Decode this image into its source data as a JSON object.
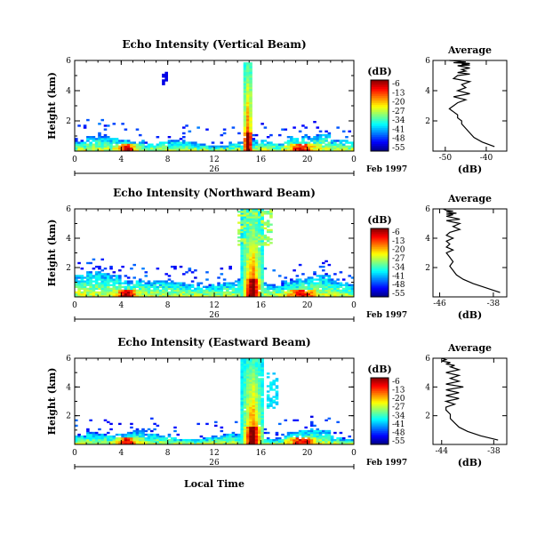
{
  "chart_data": [
    {
      "type": "heatmap",
      "title": "Echo Intensity (Vertical Beam)",
      "ylabel": "Height (km)",
      "xlabel": "",
      "x_ticks": [
        "0",
        "4",
        "8",
        "12",
        "16",
        "20",
        "0"
      ],
      "y_ticks": [
        "2",
        "4",
        "6"
      ],
      "xlim": [
        0,
        24
      ],
      "ylim": [
        0,
        6
      ],
      "colorbar": {
        "unit": "(dB)",
        "ticks": [
          "-6",
          "-13",
          "-20",
          "-27",
          "-34",
          "-41",
          "-48",
          "-55"
        ]
      },
      "profile": {
        "title": "Average",
        "xlabel": "(dB)",
        "x_ticks": [
          "-50",
          "-40"
        ],
        "xlim": [
          -53,
          -35
        ],
        "y_ticks": [
          "2",
          "4",
          "6"
        ],
        "x": [
          -38,
          -41,
          -43,
          -44,
          -45,
          -46,
          -46,
          -47,
          -47,
          -48,
          -49,
          -48,
          -47,
          -45,
          -48,
          -44,
          -47,
          -45,
          -46,
          -44,
          -48,
          -47,
          -44,
          -47,
          -45,
          -46,
          -44,
          -46,
          -47,
          -44,
          -46,
          -44,
          -48,
          -45,
          -46,
          -47,
          -48,
          -49
        ],
        "y": [
          0.3,
          0.6,
          0.9,
          1.2,
          1.5,
          1.8,
          2.0,
          2.2,
          2.4,
          2.6,
          2.8,
          3.0,
          3.2,
          3.4,
          3.6,
          3.8,
          4.0,
          4.2,
          4.4,
          4.6,
          4.8,
          5.0,
          5.1,
          5.2,
          5.3,
          5.4,
          5.5,
          5.6,
          5.65,
          5.7,
          5.75,
          5.8,
          5.85,
          5.9,
          5.92,
          5.95,
          5.98,
          6.0
        ]
      }
    },
    {
      "type": "heatmap",
      "title": "Echo Intensity (Northward Beam)",
      "ylabel": "Height (km)",
      "xlabel": "",
      "x_ticks": [
        "0",
        "4",
        "8",
        "12",
        "16",
        "20",
        "0"
      ],
      "y_ticks": [
        "2",
        "4",
        "6"
      ],
      "xlim": [
        0,
        24
      ],
      "ylim": [
        0,
        6
      ],
      "colorbar": {
        "unit": "(dB)",
        "ticks": [
          "-6",
          "-13",
          "-20",
          "-27",
          "-34",
          "-41",
          "-48",
          "-55"
        ]
      },
      "profile": {
        "title": "Average",
        "xlabel": "(dB)",
        "x_ticks": [
          "-46",
          "-38"
        ],
        "xlim": [
          -47,
          -36
        ],
        "y_ticks": [
          "2",
          "4",
          "6"
        ],
        "x": [
          -37,
          -39,
          -41,
          -42.5,
          -43.5,
          -44,
          -44.5,
          -44,
          -44.5,
          -45,
          -44,
          -45,
          -44.5,
          -45,
          -44,
          -45,
          -44.5,
          -43,
          -44,
          -43,
          -45,
          -43,
          -44,
          -45,
          -44,
          -45,
          -43.5,
          -44.5,
          -45,
          -44,
          -45,
          -45.5
        ],
        "y": [
          0.3,
          0.6,
          0.9,
          1.2,
          1.5,
          1.8,
          2.1,
          2.4,
          2.7,
          3.0,
          3.2,
          3.4,
          3.6,
          3.8,
          4.0,
          4.2,
          4.4,
          4.6,
          4.8,
          5.0,
          5.2,
          5.3,
          5.4,
          5.5,
          5.6,
          5.65,
          5.7,
          5.75,
          5.8,
          5.85,
          5.9,
          6.0
        ]
      }
    },
    {
      "type": "heatmap",
      "title": "Echo Intensity (Eastward Beam)",
      "ylabel": "Height (km)",
      "xlabel": "Local Time",
      "x_ticks": [
        "0",
        "4",
        "8",
        "12",
        "16",
        "20",
        "0"
      ],
      "y_ticks": [
        "2",
        "4",
        "6"
      ],
      "xlim": [
        0,
        24
      ],
      "ylim": [
        0,
        6
      ],
      "colorbar": {
        "unit": "(dB)",
        "ticks": [
          "-6",
          "-13",
          "-20",
          "-27",
          "-34",
          "-41",
          "-48",
          "-55"
        ]
      },
      "profile": {
        "title": "Average",
        "xlabel": "(dB)",
        "x_ticks": [
          "-44",
          "-38"
        ],
        "xlim": [
          -45,
          -36.5
        ],
        "y_ticks": [
          "2",
          "4",
          "6"
        ],
        "x": [
          -37.5,
          -39.5,
          -41,
          -42,
          -42.5,
          -43,
          -43,
          -43.5,
          -43.5,
          -42.5,
          -43.5,
          -42,
          -43.5,
          -42,
          -43.5,
          -41.5,
          -43.5,
          -42,
          -43,
          -42,
          -43.5,
          -42,
          -43,
          -42.5,
          -43.5,
          -43,
          -44,
          -43.5,
          -44
        ],
        "y": [
          0.3,
          0.6,
          0.9,
          1.2,
          1.5,
          1.8,
          2.1,
          2.4,
          2.6,
          2.8,
          3.0,
          3.2,
          3.4,
          3.6,
          3.8,
          4.0,
          4.2,
          4.4,
          4.6,
          4.8,
          5.0,
          5.2,
          5.4,
          5.5,
          5.6,
          5.7,
          5.8,
          5.9,
          6.0
        ]
      }
    }
  ],
  "date_axis": {
    "tick_label": "26",
    "date_label": "Feb 1997"
  },
  "colors": {
    "colormap": [
      "#00008f",
      "#0000ff",
      "#0080ff",
      "#00ffff",
      "#80ff80",
      "#ffff00",
      "#ff8000",
      "#ff0000",
      "#800000"
    ]
  }
}
